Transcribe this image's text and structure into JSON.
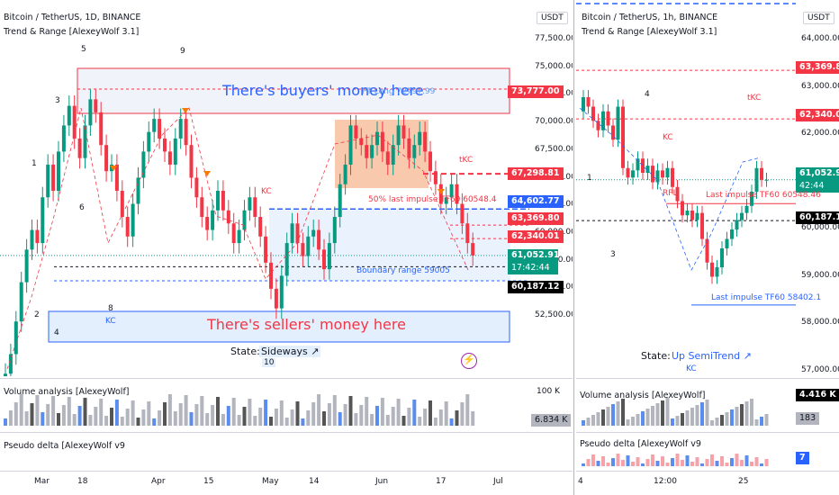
{
  "colors": {
    "up": "#089981",
    "down": "#f23645",
    "blue": "#2962ff",
    "grey": "#787b86"
  },
  "left": {
    "title": "Bitcoin / TetherUS, 1D, BINANCE",
    "indicator": "Trend & Range [AlexeyWolf 3.1]",
    "currency": "USDT",
    "price_axis": [
      "77,500.00",
      "75,000.00",
      "72,500.00",
      "70,000.00",
      "67,500.00",
      "65,000.00",
      "62,500.00",
      "60,000.00",
      "57,500.00",
      "55,000.00",
      "52,500.00"
    ],
    "tags": {
      "t73777": "73,777.00",
      "t67298": "67,298.81",
      "t64602": "64,602.77",
      "t63369": "63,369.80",
      "t62340": "62,340.01",
      "t61052": "61,052.91",
      "t_timer": "17:42:44",
      "t60187": "60,187.12"
    },
    "x_axis": [
      "Mar",
      "18",
      "Apr",
      "15",
      "May",
      "14",
      "Jun",
      "17",
      "Jul"
    ],
    "annotations": {
      "buyers": "There's buyers' money here",
      "sellers": "There's sellers' money here",
      "pt_long": "PT Long 72797.99",
      "impulse": "50% last impulse TF60 60548.4",
      "boundary": "Boundary range 59005",
      "tkc": "tKC",
      "kc1": "KC",
      "kc2": "KC",
      "state_label": "State:",
      "state_value": "Sideways ↗",
      "state_num": "10",
      "w5": "5",
      "w9": "9",
      "w3": "3",
      "w1": "1",
      "w6": "6",
      "w2": "2",
      "w4": "4",
      "w8": "8"
    },
    "volume": {
      "title": "Volume analysis [AlexeyWolf]",
      "axis": "100 K",
      "tag": "6.834 K"
    },
    "delta": {
      "title": "Pseudo delta [AlexeyWolf v9"
    }
  },
  "right": {
    "title": "Bitcoin / TetherUS, 1h, BINANCE",
    "indicator": "Trend & Range [AlexeyWolf 3.1]",
    "currency": "USDT",
    "price_axis": [
      "64,000.00",
      "63,000.00",
      "62,000.00",
      "61,000.00",
      "60,000.00",
      "59,000.00",
      "58,000.00",
      "57,000.00"
    ],
    "tags": {
      "t63369": "63,369.80",
      "t62340": "62,340.01",
      "t61052": "61,052.91",
      "t_timer": "42:44",
      "t60187": "60,187.12",
      "vol": "4.416 K",
      "vol2": "183",
      "delta": "7"
    },
    "x_axis": [
      "4",
      "12:00",
      "25"
    ],
    "annotations": {
      "tkc": "tKC",
      "kc": "KC",
      "rpl": "RPL",
      "impulse60": "Last impulse TF60 60548.46",
      "impulse58": "Last impulse TF60 58402.1",
      "state_label": "State:",
      "state_value": "Up SemiTrend ↗",
      "kc2": "KC",
      "w4": "4",
      "w1": "1",
      "w3": "3"
    },
    "volume": {
      "title": "Volume analysis [AlexeyWolf]"
    },
    "delta": {
      "title": "Pseudo delta [AlexeyWolf v9"
    }
  }
}
